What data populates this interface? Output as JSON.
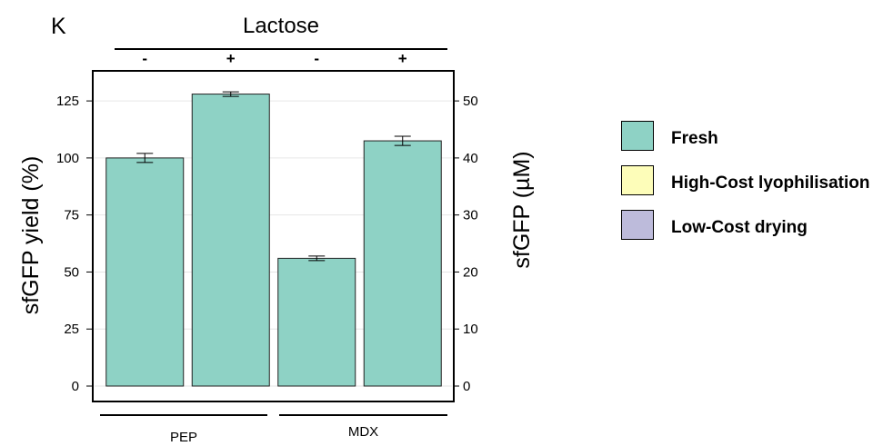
{
  "panel_label": "K",
  "colors": {
    "fresh": "#8ed2c5",
    "high_cost": "#fdfdb9",
    "low_cost": "#bdbbdb",
    "axis": "#000000",
    "grid": "#e6e6e6"
  },
  "chart_data": {
    "type": "bar",
    "title": "",
    "top_group_label": "Lactose",
    "lactose_labels": [
      "-",
      "+",
      "-",
      "+"
    ],
    "bottom_group_labels": [
      "PEP",
      "MDX"
    ],
    "ylabel": "sfGFP yield (%)",
    "y2label": "sfGFP (µM)",
    "ylim": [
      0,
      135
    ],
    "y2lim": [
      0,
      54
    ],
    "yticks": [
      0,
      25,
      50,
      75,
      100,
      125
    ],
    "y2ticks": [
      0,
      10,
      20,
      30,
      40,
      50
    ],
    "grid": true,
    "legend_position": "right",
    "series": [
      {
        "name": "Fresh",
        "color": "#8ed2c5",
        "values": [
          100,
          128,
          56,
          107.5
        ],
        "errors": [
          2,
          1,
          1,
          2
        ]
      }
    ],
    "legend": [
      {
        "label": "Fresh",
        "color": "#8ed2c5"
      },
      {
        "label": "High-Cost lyophilisation",
        "color": "#fdfdb9"
      },
      {
        "label": "Low-Cost drying",
        "color": "#bdbbdb"
      }
    ]
  }
}
